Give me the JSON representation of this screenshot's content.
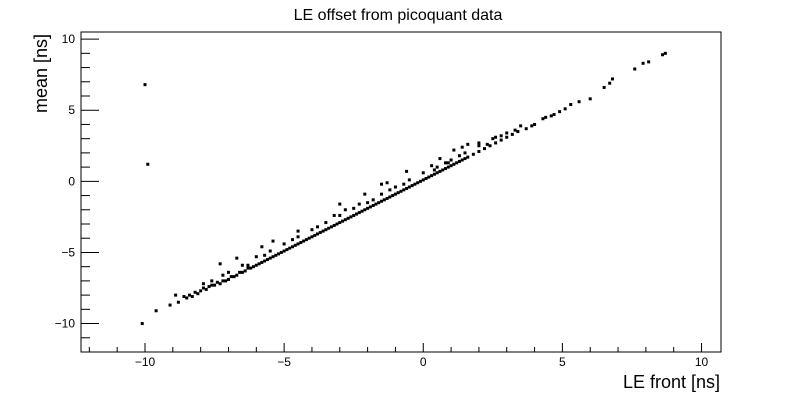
{
  "chart_data": {
    "type": "scatter",
    "title": "LE offset from picoquant data",
    "xlabel": "LE front [ns]",
    "ylabel": "mean [ns]",
    "xlim": [
      -12.3,
      10.7
    ],
    "ylim": [
      -12.0,
      10.5
    ],
    "xticks": [
      -10,
      -5,
      0,
      5,
      10
    ],
    "xtick_labels": [
      "−10",
      "−5",
      "0",
      "5",
      "10"
    ],
    "yticks": [
      -10,
      -5,
      0,
      5,
      10
    ],
    "ytick_labels": [
      "−10",
      "−5",
      "0",
      "5",
      "10"
    ],
    "grid": false,
    "legend": "none",
    "marker_color": "#000000",
    "series": [
      {
        "points": [
          [
            -10.0,
            6.8
          ],
          [
            -9.9,
            1.2
          ],
          [
            -10.1,
            -10.0
          ],
          [
            -9.1,
            -8.7
          ],
          [
            -8.8,
            -8.5
          ],
          [
            -8.6,
            -8.1
          ],
          [
            -8.4,
            -8.0
          ],
          [
            -8.3,
            -8.1
          ],
          [
            -8.2,
            -7.8
          ],
          [
            -8.1,
            -7.9
          ],
          [
            -8.0,
            -7.7
          ],
          [
            -7.9,
            -7.5
          ],
          [
            -7.8,
            -7.6
          ],
          [
            -7.7,
            -7.4
          ],
          [
            -7.6,
            -7.3
          ],
          [
            -7.5,
            -7.3
          ],
          [
            -7.4,
            -7.1
          ],
          [
            -7.3,
            -7.2
          ],
          [
            -7.2,
            -7.0
          ],
          [
            -7.1,
            -7.0
          ],
          [
            -7.0,
            -6.9
          ],
          [
            -6.9,
            -6.7
          ],
          [
            -6.8,
            -6.7
          ],
          [
            -6.7,
            -6.6
          ],
          [
            -6.6,
            -6.4
          ],
          [
            -6.5,
            -6.4
          ],
          [
            -6.4,
            -6.3
          ],
          [
            -6.3,
            -6.1
          ],
          [
            -6.2,
            -6.1
          ],
          [
            -6.1,
            -6.0
          ],
          [
            -6.0,
            -5.9
          ],
          [
            -5.9,
            -5.8
          ],
          [
            -5.8,
            -5.7
          ],
          [
            -5.7,
            -5.6
          ],
          [
            -5.6,
            -5.5
          ],
          [
            -5.5,
            -5.4
          ],
          [
            -5.4,
            -5.3
          ],
          [
            -5.3,
            -5.2
          ],
          [
            -5.2,
            -5.1
          ],
          [
            -5.1,
            -5.0
          ],
          [
            -5.0,
            -4.9
          ],
          [
            -4.9,
            -4.8
          ],
          [
            -4.8,
            -4.7
          ],
          [
            -4.7,
            -4.6
          ],
          [
            -4.6,
            -4.5
          ],
          [
            -4.5,
            -4.4
          ],
          [
            -4.4,
            -4.3
          ],
          [
            -4.3,
            -4.2
          ],
          [
            -4.2,
            -4.1
          ],
          [
            -4.1,
            -4.0
          ],
          [
            -4.0,
            -3.9
          ],
          [
            -3.9,
            -3.8
          ],
          [
            -3.8,
            -3.7
          ],
          [
            -3.7,
            -3.6
          ],
          [
            -3.6,
            -3.5
          ],
          [
            -3.5,
            -3.4
          ],
          [
            -3.4,
            -3.3
          ],
          [
            -3.3,
            -3.2
          ],
          [
            -3.2,
            -3.1
          ],
          [
            -3.1,
            -3.0
          ],
          [
            -3.0,
            -2.9
          ],
          [
            -2.9,
            -2.8
          ],
          [
            -2.8,
            -2.7
          ],
          [
            -2.7,
            -2.6
          ],
          [
            -2.6,
            -2.5
          ],
          [
            -2.5,
            -2.4
          ],
          [
            -2.4,
            -2.3
          ],
          [
            -2.3,
            -2.2
          ],
          [
            -2.2,
            -2.1
          ],
          [
            -2.1,
            -2.0
          ],
          [
            -2.0,
            -1.9
          ],
          [
            -1.9,
            -1.8
          ],
          [
            -1.8,
            -1.7
          ],
          [
            -1.7,
            -1.6
          ],
          [
            -1.6,
            -1.5
          ],
          [
            -1.5,
            -1.4
          ],
          [
            -1.4,
            -1.3
          ],
          [
            -1.3,
            -1.2
          ],
          [
            -1.2,
            -1.1
          ],
          [
            -1.1,
            -1.0
          ],
          [
            -1.0,
            -0.9
          ],
          [
            -0.9,
            -0.8
          ],
          [
            -0.8,
            -0.7
          ],
          [
            -0.7,
            -0.6
          ],
          [
            -0.6,
            -0.5
          ],
          [
            -0.5,
            -0.4
          ],
          [
            -0.4,
            -0.3
          ],
          [
            -0.3,
            -0.2
          ],
          [
            -0.2,
            -0.1
          ],
          [
            -0.1,
            0.0
          ],
          [
            0.0,
            0.1
          ],
          [
            0.1,
            0.2
          ],
          [
            0.2,
            0.3
          ],
          [
            0.3,
            0.4
          ],
          [
            0.4,
            0.5
          ],
          [
            0.5,
            0.6
          ],
          [
            0.6,
            0.7
          ],
          [
            0.7,
            0.8
          ],
          [
            0.8,
            0.9
          ],
          [
            0.9,
            1.0
          ],
          [
            1.0,
            1.1
          ],
          [
            1.1,
            1.2
          ],
          [
            1.2,
            1.3
          ],
          [
            1.3,
            1.4
          ],
          [
            1.4,
            1.5
          ],
          [
            1.5,
            1.6
          ],
          [
            1.6,
            1.7
          ],
          [
            1.8,
            1.9
          ],
          [
            2.0,
            2.1
          ],
          [
            2.2,
            2.3
          ],
          [
            2.4,
            2.5
          ],
          [
            2.6,
            2.7
          ],
          [
            2.8,
            2.9
          ],
          [
            3.0,
            3.1
          ],
          [
            3.2,
            3.3
          ],
          [
            3.4,
            3.5
          ],
          [
            3.7,
            3.7
          ],
          [
            4.0,
            4.0
          ],
          [
            4.3,
            4.4
          ],
          [
            4.6,
            4.6
          ],
          [
            4.9,
            4.9
          ],
          [
            5.3,
            5.4
          ],
          [
            5.6,
            5.6
          ],
          [
            6.0,
            5.8
          ],
          [
            6.5,
            6.6
          ],
          [
            6.7,
            6.9
          ],
          [
            6.8,
            7.2
          ],
          [
            7.6,
            7.9
          ],
          [
            7.9,
            8.3
          ],
          [
            8.1,
            8.4
          ],
          [
            8.6,
            8.9
          ],
          [
            8.7,
            9.0
          ],
          [
            -7.6,
            -7.0
          ],
          [
            -7.0,
            -6.4
          ],
          [
            -6.5,
            -5.9
          ],
          [
            -6.0,
            -5.3
          ],
          [
            -5.5,
            -4.9
          ],
          [
            -5.0,
            -4.4
          ],
          [
            -4.5,
            -3.9
          ],
          [
            -4.0,
            -3.4
          ],
          [
            -3.5,
            -2.9
          ],
          [
            -3.0,
            -2.4
          ],
          [
            -2.5,
            -1.9
          ],
          [
            -2.0,
            -1.5
          ],
          [
            -1.5,
            -0.9
          ],
          [
            -1.0,
            -0.4
          ],
          [
            -0.5,
            0.1
          ],
          [
            0.0,
            0.6
          ],
          [
            0.5,
            1.0
          ],
          [
            1.0,
            1.5
          ],
          [
            1.5,
            2.0
          ],
          [
            2.0,
            2.5
          ],
          [
            2.5,
            3.0
          ],
          [
            3.0,
            3.4
          ],
          [
            3.5,
            3.9
          ],
          [
            -7.3,
            -5.8
          ],
          [
            -6.7,
            -5.4
          ],
          [
            -5.8,
            -4.6
          ],
          [
            -5.4,
            -4.2
          ],
          [
            -4.5,
            -3.5
          ],
          [
            -3.2,
            -2.4
          ],
          [
            -3.0,
            -1.6
          ],
          [
            -2.1,
            -0.9
          ],
          [
            -1.5,
            -0.2
          ],
          [
            -1.3,
            -0.1
          ],
          [
            -0.6,
            0.7
          ],
          [
            0.3,
            1.1
          ],
          [
            0.6,
            1.6
          ],
          [
            0.8,
            1.3
          ],
          [
            1.1,
            2.2
          ],
          [
            1.4,
            2.4
          ],
          [
            1.6,
            2.6
          ],
          [
            2.0,
            2.7
          ],
          [
            2.6,
            3.1
          ],
          [
            -9.6,
            -9.1
          ],
          [
            -8.9,
            -8.0
          ],
          [
            -8.5,
            -8.2
          ],
          [
            -7.9,
            -7.2
          ],
          [
            -7.2,
            -6.6
          ],
          [
            -6.3,
            -5.9
          ],
          [
            -5.7,
            -5.2
          ],
          [
            -4.7,
            -4.1
          ],
          [
            -3.8,
            -3.2
          ],
          [
            -2.8,
            -2.0
          ],
          [
            -2.3,
            -1.6
          ],
          [
            -1.8,
            -1.3
          ],
          [
            -1.2,
            -0.6
          ],
          [
            -0.7,
            -0.2
          ],
          [
            0.4,
            0.8
          ],
          [
            0.9,
            1.3
          ],
          [
            1.3,
            1.8
          ],
          [
            2.3,
            2.6
          ],
          [
            2.8,
            3.2
          ],
          [
            3.3,
            3.6
          ],
          [
            3.9,
            3.9
          ],
          [
            4.4,
            4.5
          ],
          [
            4.7,
            4.7
          ],
          [
            5.1,
            5.1
          ]
        ]
      }
    ]
  }
}
